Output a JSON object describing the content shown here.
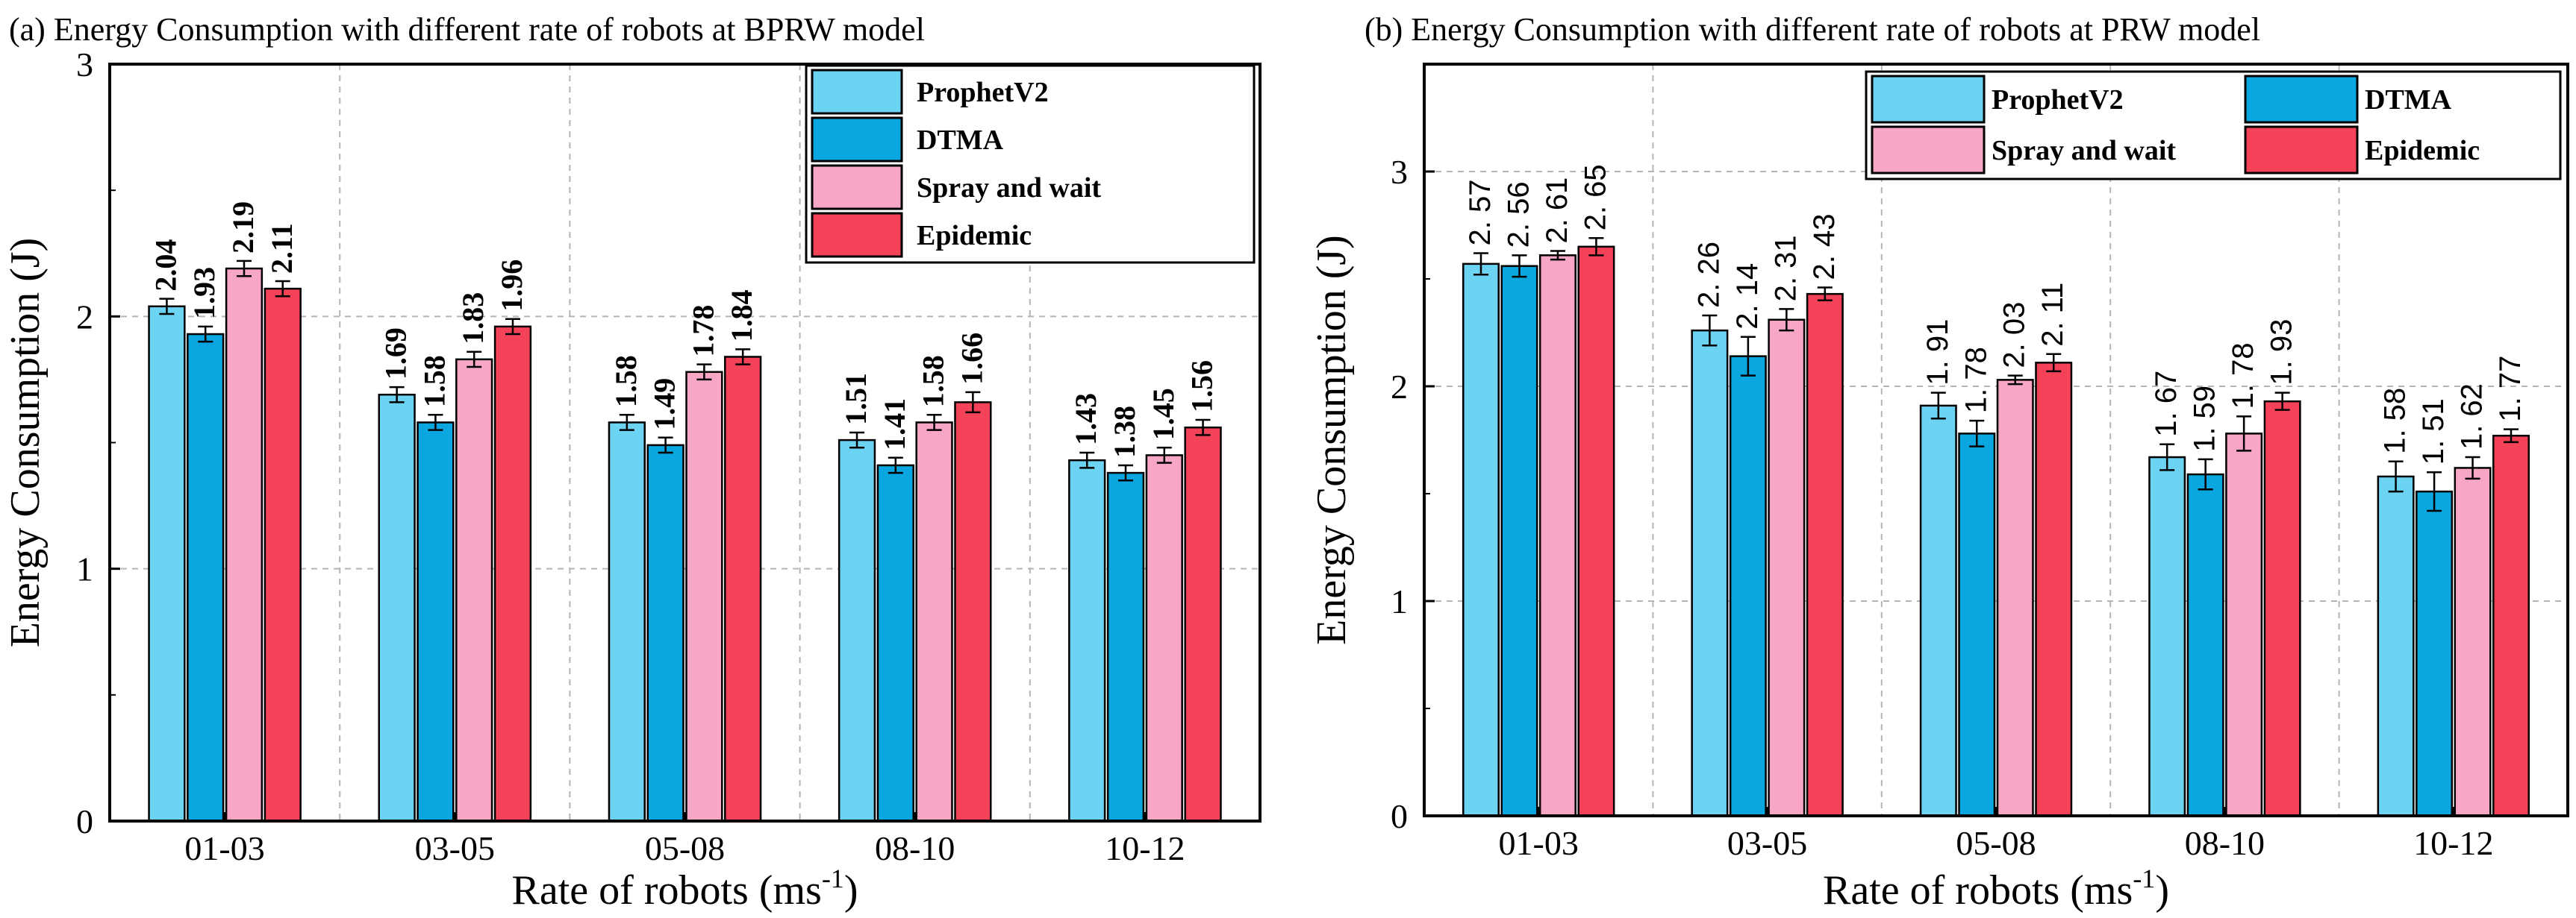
{
  "chart_data": [
    {
      "type": "bar",
      "title": "(a) Energy Consumption with different rate of robots at BPRW model",
      "xlabel": "Rate of robots (ms",
      "xlabel_sup": "-1",
      "xlabel_end": ")",
      "ylabel": "Energy Consumption (J)",
      "ylim": [
        0,
        3
      ],
      "yticks": [
        "0",
        "1",
        "2",
        "3"
      ],
      "categories": [
        "01-03",
        "03-05",
        "05-08",
        "08-10",
        "10-12"
      ],
      "legend_position": "top-right",
      "series": [
        {
          "name": "ProphetV2",
          "color": "#6DD3F2",
          "values": [
            2.04,
            1.69,
            1.58,
            1.51,
            1.43
          ],
          "labels": [
            "2.04",
            "1.69",
            "1.58",
            "1.51",
            "1.43"
          ]
        },
        {
          "name": "DTMA",
          "color": "#0AA6DF",
          "values": [
            1.93,
            1.58,
            1.49,
            1.41,
            1.38
          ],
          "labels": [
            "1.93",
            "1.58",
            "1.49",
            "1.41",
            "1.38"
          ]
        },
        {
          "name": "Spray and wait",
          "color": "#F8A6C6",
          "values": [
            2.19,
            1.83,
            1.78,
            1.58,
            1.45
          ],
          "labels": [
            "2.19",
            "1.83",
            "1.78",
            "1.58",
            "1.45"
          ]
        },
        {
          "name": "Epidemic",
          "color": "#F44258",
          "values": [
            2.11,
            1.96,
            1.84,
            1.66,
            1.56
          ],
          "labels": [
            "2.11",
            "1.96",
            "1.84",
            "1.66",
            "1.56"
          ]
        }
      ],
      "errors": [
        [
          0.03,
          0.03,
          0.03,
          0.03,
          0.03
        ],
        [
          0.03,
          0.03,
          0.03,
          0.03,
          0.03
        ],
        [
          0.03,
          0.03,
          0.03,
          0.03,
          0.03
        ],
        [
          0.03,
          0.03,
          0.03,
          0.04,
          0.03
        ]
      ]
    },
    {
      "type": "bar",
      "title": "(b) Energy Consumption with different rate of robots at PRW model",
      "xlabel": "Rate of robots (ms",
      "xlabel_sup": "-1",
      "xlabel_end": ")",
      "ylabel": "Energy Consumption (J)",
      "ylim": [
        0,
        3.5
      ],
      "yticks": [
        "0",
        "1",
        "2",
        "3"
      ],
      "categories": [
        "01-03",
        "03-05",
        "05-08",
        "08-10",
        "10-12"
      ],
      "legend_position": "top-right",
      "series": [
        {
          "name": "ProphetV2",
          "color": "#6DD3F2",
          "values": [
            2.57,
            2.26,
            1.91,
            1.67,
            1.58
          ],
          "labels": [
            "2. 57",
            "2. 26",
            "1. 91",
            "1. 67",
            "1. 58"
          ]
        },
        {
          "name": "DTMA",
          "color": "#0AA6DF",
          "values": [
            2.56,
            2.14,
            1.78,
            1.59,
            1.51
          ],
          "labels": [
            "2. 56",
            "2. 14",
            "1. 78",
            "1. 59",
            "1. 51"
          ]
        },
        {
          "name": "Spray and wait",
          "color": "#F8A6C6",
          "values": [
            2.61,
            2.31,
            2.03,
            1.78,
            1.62
          ],
          "labels": [
            "2. 61",
            "2. 31",
            "2. 03",
            "1. 78",
            "1. 62"
          ]
        },
        {
          "name": "Epidemic",
          "color": "#F44258",
          "values": [
            2.65,
            2.43,
            2.11,
            1.93,
            1.77
          ],
          "labels": [
            "2. 65",
            "2. 43",
            "2. 11",
            "1. 93",
            "1. 77"
          ]
        }
      ],
      "errors": [
        [
          0.05,
          0.07,
          0.06,
          0.06,
          0.07
        ],
        [
          0.05,
          0.09,
          0.06,
          0.07,
          0.09
        ],
        [
          0.02,
          0.05,
          0.02,
          0.08,
          0.05
        ],
        [
          0.04,
          0.03,
          0.04,
          0.04,
          0.03
        ]
      ]
    }
  ]
}
